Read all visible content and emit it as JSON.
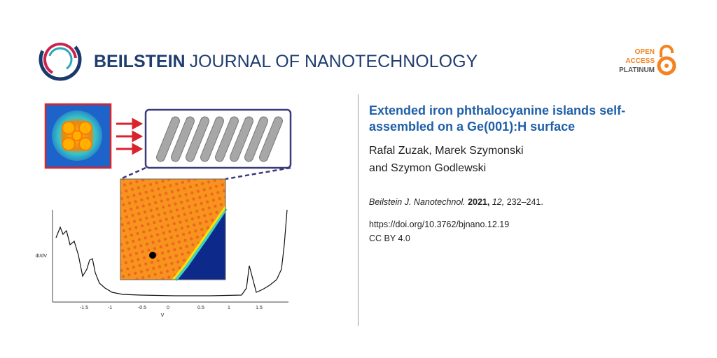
{
  "header": {
    "brand_bold": "BEILSTEIN",
    "brand_light": "JOURNAL OF NANOTECHNOLOGY",
    "badge": [
      "OPEN",
      "ACCESS",
      "PLATINUM"
    ]
  },
  "article": {
    "title_lines": [
      "Extended iron phthalocyanine islands self-",
      "assembled on a Ge(001):H surface"
    ],
    "author_lines": [
      "Rafal Zuzak, Marek Szymonski",
      "and Szymon Godlewski"
    ],
    "citation": {
      "journal": "Beilstein J. Nanotechnol.",
      "year": "2021,",
      "volume": "12,",
      "pages": "232–241."
    },
    "doi": "https://doi.org/10.3762/bjnano.12.19",
    "license": "CC BY 4.0"
  },
  "figure": {
    "y_label": "dI/dV",
    "x_label": "V",
    "x_tick_labels": [
      "-1.5",
      "-1",
      "-0.5",
      "0",
      "0.5",
      "1",
      "1.5"
    ]
  }
}
